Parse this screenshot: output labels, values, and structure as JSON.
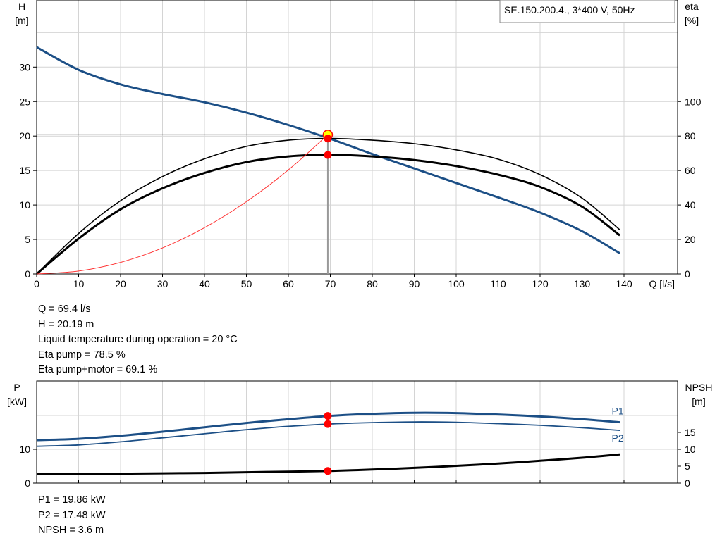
{
  "chart_data": [
    {
      "type": "line",
      "title": "SE.150.200.4., 3*400 V, 50Hz",
      "xlabel": "Q [l/s]",
      "ylabel": "H\n[m]",
      "y2label": "eta\n[%]",
      "xlim": [
        0,
        150
      ],
      "xticks": [
        0,
        10,
        20,
        30,
        40,
        50,
        60,
        70,
        80,
        90,
        100,
        110,
        120,
        130,
        140
      ],
      "ylim": [
        0,
        40
      ],
      "yticks": [
        0,
        5,
        10,
        15,
        20,
        25,
        30
      ],
      "y2lim": [
        0,
        160
      ],
      "y2ticks": [
        0,
        20,
        40,
        60,
        80,
        100
      ],
      "grid": true,
      "colors": {
        "pump": "#1c4f86",
        "eta": "#000000",
        "system": "#ff3030",
        "marker": "#ff0000",
        "marker_highlight": "#ffff00"
      },
      "series": [
        {
          "role": "pump",
          "axis": "left",
          "x": [
            0,
            10,
            20,
            30,
            40,
            50,
            60,
            70,
            80,
            90,
            100,
            110,
            120,
            130,
            139
          ],
          "y": [
            32.9,
            29.6,
            27.5,
            26.1,
            24.9,
            23.4,
            21.6,
            19.6,
            17.4,
            15.3,
            13.2,
            11.1,
            8.9,
            6.2,
            3.0
          ]
        },
        {
          "role": "eta-pump",
          "axis": "right",
          "x": [
            0,
            10,
            20,
            30,
            40,
            50,
            60,
            70,
            80,
            90,
            100,
            110,
            120,
            130,
            139
          ],
          "y": [
            0,
            23.5,
            42.5,
            56.5,
            66.8,
            74.0,
            77.6,
            78.6,
            77.6,
            75.6,
            72.0,
            66.6,
            57.6,
            44.0,
            25.6
          ]
        },
        {
          "role": "eta-pump-motor",
          "axis": "right",
          "x": [
            0,
            10,
            20,
            30,
            40,
            50,
            60,
            70,
            80,
            90,
            100,
            110,
            120,
            130,
            139
          ],
          "y": [
            0,
            20.5,
            37.5,
            49.7,
            58.6,
            64.9,
            68.2,
            69.1,
            68.2,
            66.1,
            62.6,
            57.6,
            50.5,
            39.0,
            22.4
          ]
        },
        {
          "role": "system",
          "axis": "left",
          "x": [
            0,
            10,
            20,
            30,
            40,
            50,
            60,
            69.4
          ],
          "y": [
            0,
            0.42,
            1.68,
            3.77,
            6.71,
            10.48,
            15.09,
            20.19
          ]
        }
      ],
      "duty_point": {
        "Q": 69.4,
        "H": 20.19,
        "eta_pump": 78.5,
        "eta_pump_motor": 69.1
      }
    },
    {
      "type": "line",
      "title": "",
      "xlabel": "",
      "ylabel": "P\n[kW]",
      "y2label": "NPSH\n[m]",
      "xlim": [
        0,
        150
      ],
      "xticks": [
        0,
        10,
        20,
        30,
        40,
        50,
        60,
        70,
        80,
        90,
        100,
        110,
        120,
        130,
        140
      ],
      "ylim": [
        0,
        25
      ],
      "yticks": [
        0,
        10
      ],
      "y2lim": [
        0,
        25
      ],
      "y2ticks": [
        0,
        5,
        10,
        15
      ],
      "grid": true,
      "series": [
        {
          "name": "P1",
          "axis": "left",
          "x": [
            0,
            10,
            20,
            30,
            40,
            50,
            60,
            70,
            80,
            90,
            100,
            110,
            120,
            130,
            139
          ],
          "y": [
            12.7,
            13.1,
            14.0,
            15.2,
            16.5,
            17.8,
            18.9,
            19.9,
            20.5,
            20.8,
            20.7,
            20.3,
            19.7,
            18.9,
            18.0
          ]
        },
        {
          "name": "P2",
          "axis": "left",
          "x": [
            0,
            10,
            20,
            30,
            40,
            50,
            60,
            70,
            80,
            90,
            100,
            110,
            120,
            130,
            139
          ],
          "y": [
            10.9,
            11.3,
            12.2,
            13.4,
            14.6,
            15.8,
            16.8,
            17.5,
            17.9,
            18.1,
            18.0,
            17.6,
            17.1,
            16.4,
            15.6
          ]
        },
        {
          "role": "npsh",
          "axis": "right",
          "x": [
            0,
            10,
            20,
            30,
            40,
            50,
            60,
            70,
            80,
            90,
            100,
            110,
            120,
            130,
            139
          ],
          "y": [
            2.7,
            2.7,
            2.8,
            2.9,
            3.0,
            3.2,
            3.4,
            3.6,
            4.0,
            4.5,
            5.1,
            5.8,
            6.6,
            7.5,
            8.5
          ]
        }
      ],
      "duty_point": {
        "Q": 69.4,
        "P1": 19.86,
        "P2": 17.48,
        "NPSH": 3.6
      }
    }
  ],
  "info_top": [
    "Q = 69.4 l/s",
    "H = 20.19 m",
    "Liquid temperature during operation = 20 °C",
    "Eta pump = 78.5 %",
    "Eta pump+motor = 69.1 %"
  ],
  "info_bottom": [
    "P1 = 19.86 kW",
    "P2 = 17.48 kW",
    "NPSH = 3.6 m"
  ]
}
